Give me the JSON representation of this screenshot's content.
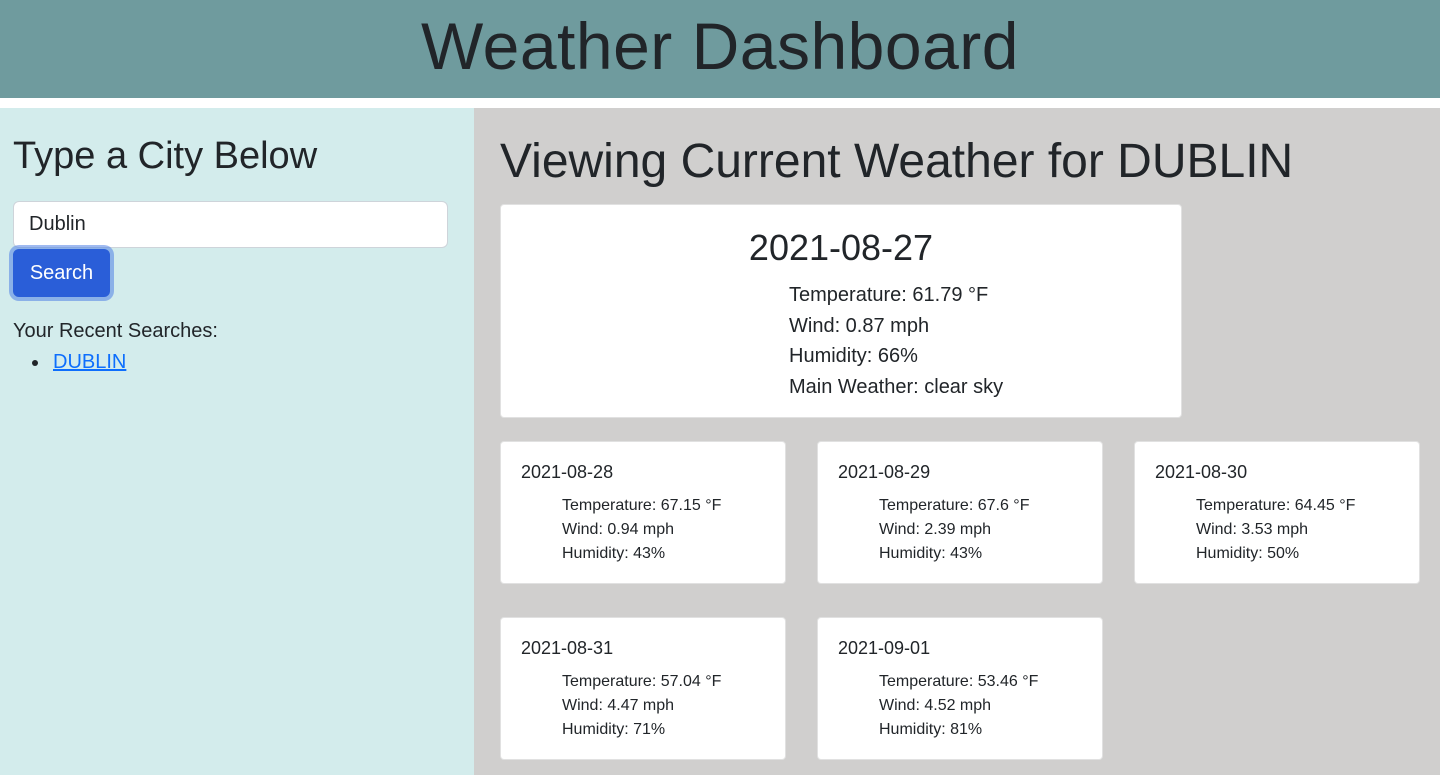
{
  "header": {
    "title": "Weather Dashboard"
  },
  "sidebar": {
    "heading": "Type a City Below",
    "search_value": "Dublin",
    "search_button": "Search",
    "recent_label": "Your Recent Searches:",
    "recent": [
      "DUBLIN"
    ]
  },
  "main": {
    "heading": "Viewing Current Weather for DUBLIN",
    "current": {
      "date": "2021-08-27",
      "temperature": "Temperature: 61.79 °F",
      "wind": "Wind: 0.87 mph",
      "humidity": "Humidity: 66%",
      "main_weather": "Main Weather: clear sky"
    },
    "forecast": [
      {
        "date": "2021-08-28",
        "temperature": "Temperature: 67.15 °F",
        "wind": "Wind: 0.94 mph",
        "humidity": "Humidity: 43%"
      },
      {
        "date": "2021-08-29",
        "temperature": "Temperature: 67.6 °F",
        "wind": "Wind: 2.39 mph",
        "humidity": "Humidity: 43%"
      },
      {
        "date": "2021-08-30",
        "temperature": "Temperature: 64.45 °F",
        "wind": "Wind: 3.53 mph",
        "humidity": "Humidity: 50%"
      },
      {
        "date": "2021-08-31",
        "temperature": "Temperature: 57.04 °F",
        "wind": "Wind: 4.47 mph",
        "humidity": "Humidity: 71%"
      },
      {
        "date": "2021-09-01",
        "temperature": "Temperature: 53.46 °F",
        "wind": "Wind: 4.52 mph",
        "humidity": "Humidity: 81%"
      }
    ]
  },
  "colors": {
    "header_bg": "#6f9b9e",
    "sidebar_bg": "#d3ecec",
    "main_bg": "#d0cfce",
    "button_bg": "#2a5ed8",
    "link": "#0d6efd"
  }
}
